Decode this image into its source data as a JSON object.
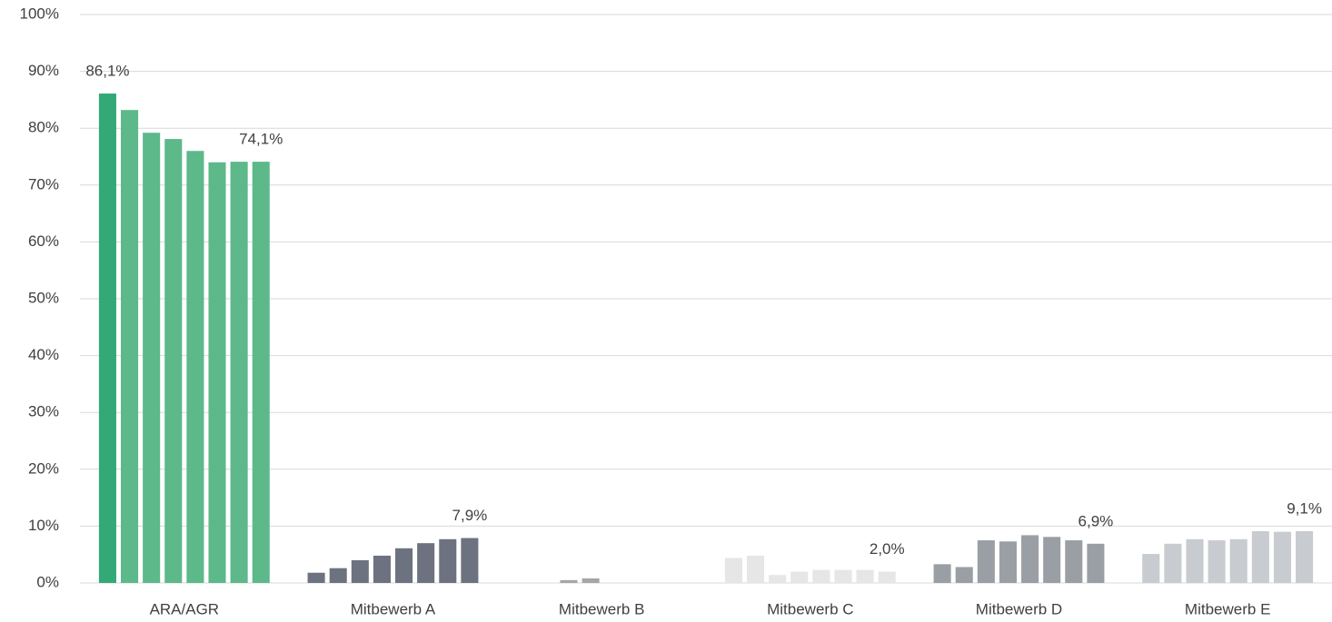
{
  "chart_data": {
    "type": "bar",
    "categories": [
      "ARA/AGR",
      "Mitbewerb A",
      "Mitbewerb B",
      "Mitbewerb C",
      "Mitbewerb D",
      "Mitbewerb E"
    ],
    "values": [
      [
        86.1,
        83.2,
        79.2,
        78.1,
        76.0,
        74.0,
        74.1,
        74.1
      ],
      [
        1.8,
        2.6,
        4.0,
        4.8,
        6.1,
        7.0,
        7.7,
        7.9
      ],
      [
        0,
        0,
        0.5,
        0.8,
        0,
        0,
        0,
        0
      ],
      [
        4.4,
        4.8,
        1.4,
        2.0,
        2.3,
        2.3,
        2.3,
        2.0
      ],
      [
        3.3,
        2.8,
        7.5,
        7.3,
        8.4,
        8.1,
        7.5,
        6.9
      ],
      [
        5.1,
        6.9,
        7.7,
        7.5,
        7.7,
        9.1,
        9.0,
        9.1
      ]
    ],
    "value_labels": [
      [
        "86,1%",
        null,
        null,
        null,
        null,
        null,
        null,
        "74,1%"
      ],
      [
        null,
        null,
        null,
        null,
        null,
        null,
        null,
        "7,9%"
      ],
      [
        null,
        null,
        null,
        null,
        null,
        null,
        null,
        null
      ],
      [
        null,
        null,
        null,
        null,
        null,
        null,
        null,
        "2,0%"
      ],
      [
        null,
        null,
        null,
        null,
        null,
        null,
        null,
        "6,9%"
      ],
      [
        null,
        null,
        null,
        null,
        null,
        null,
        null,
        "9,1%"
      ]
    ],
    "colors": [
      [
        "#33a977",
        "#5db88a",
        "#5db88a",
        "#5db88a",
        "#5db88a",
        "#5db88a",
        "#5db88a",
        "#5db88a"
      ],
      [
        "#6d7280",
        "#6d7280",
        "#6d7280",
        "#6d7280",
        "#6d7280",
        "#6d7280",
        "#6d7280",
        "#6d7280"
      ],
      [
        "#a6a6a6",
        "#a6a6a6",
        "#a6a6a6",
        "#a6a6a6",
        "#a6a6a6",
        "#a6a6a6",
        "#a6a6a6",
        "#a6a6a6"
      ],
      [
        "#e6e6e6",
        "#e6e6e6",
        "#e6e6e6",
        "#e6e6e6",
        "#e6e6e6",
        "#e6e6e6",
        "#e6e6e6",
        "#e6e6e6"
      ],
      [
        "#9a9fa5",
        "#9a9fa5",
        "#9a9fa5",
        "#9a9fa5",
        "#9a9fa5",
        "#9a9fa5",
        "#9a9fa5",
        "#9a9fa5"
      ],
      [
        "#c8cbcf",
        "#c8cbcf",
        "#c8cbcf",
        "#c8cbcf",
        "#c8cbcf",
        "#c8cbcf",
        "#c8cbcf",
        "#c8cbcf"
      ]
    ],
    "ylim": [
      0,
      100
    ],
    "yticks": [
      {
        "value": 0,
        "label": "0%"
      },
      {
        "value": 10,
        "label": "10%"
      },
      {
        "value": 20,
        "label": "20%"
      },
      {
        "value": 30,
        "label": "30%"
      },
      {
        "value": 40,
        "label": "40%"
      },
      {
        "value": 50,
        "label": "50%"
      },
      {
        "value": 60,
        "label": "60%"
      },
      {
        "value": 70,
        "label": "70%"
      },
      {
        "value": 80,
        "label": "80%"
      },
      {
        "value": 90,
        "label": "90%"
      },
      {
        "value": 100,
        "label": "100%"
      }
    ],
    "grid": true
  }
}
